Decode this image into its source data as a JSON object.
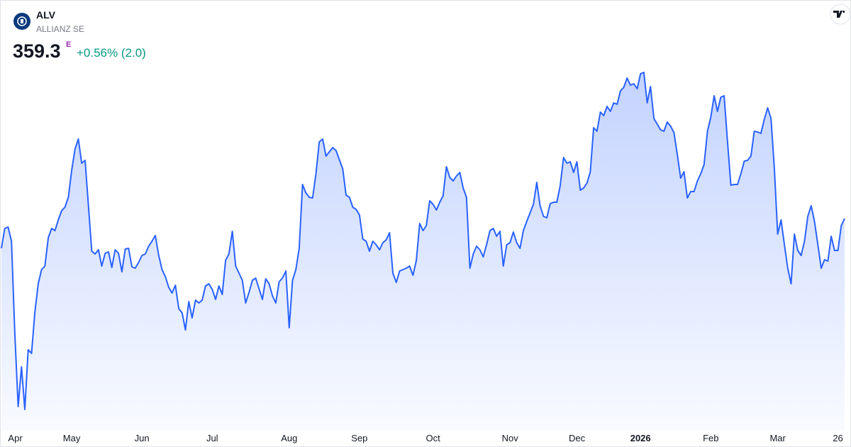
{
  "header": {
    "ticker": "ALV",
    "name": "ALLIANZ SE",
    "price": "359.3",
    "price_flag": "E",
    "change": "+0.56% (2.0)"
  },
  "chart_data": {
    "type": "area",
    "color": "#2962ff",
    "values": [
      355.1,
      357.9,
      358.1,
      356.1,
      343.1,
      332.8,
      338.4,
      332.4,
      340.8,
      340.3,
      346.1,
      350.1,
      352.1,
      352.6,
      356.6,
      357.9,
      357.6,
      359.1,
      360.4,
      360.9,
      362.3,
      366.1,
      369.1,
      370.5,
      367.1,
      367.5,
      361.1,
      354.7,
      354.3,
      354.9,
      352.6,
      354.4,
      354.6,
      352.4,
      354.9,
      354.4,
      351.8,
      355.0,
      355.1,
      352.5,
      352.3,
      353.1,
      354.1,
      354.3,
      355.4,
      356.1,
      356.9,
      354.1,
      352.1,
      351.1,
      349.6,
      348.8,
      349.9,
      346.6,
      346.0,
      343.6,
      347.6,
      345.3,
      347.8,
      347.4,
      347.8,
      349.8,
      350.1,
      349.3,
      347.9,
      349.8,
      348.6,
      353.4,
      354.3,
      357.5,
      352.6,
      351.6,
      350.6,
      347.4,
      348.9,
      350.6,
      350.9,
      349.4,
      347.9,
      350.8,
      350.1,
      348.4,
      347.4,
      350.4,
      350.9,
      351.9,
      343.9,
      350.6,
      352.1,
      355.1,
      364.1,
      362.9,
      362.3,
      362.2,
      365.6,
      370.1,
      370.5,
      368.1,
      368.7,
      369.3,
      368.9,
      367.6,
      366.3,
      362.6,
      362.3,
      360.9,
      360.6,
      359.8,
      356.4,
      356.1,
      354.7,
      356.1,
      355.6,
      354.9,
      355.9,
      356.3,
      357.3,
      351.6,
      350.3,
      351.9,
      352.1,
      352.3,
      352.6,
      351.3,
      353.4,
      358.6,
      357.6,
      358.3,
      361.8,
      361.3,
      360.5,
      361.6,
      362.5,
      366.6,
      365.1,
      364.6,
      365.3,
      365.8,
      363.6,
      362.3,
      352.3,
      354.3,
      355.4,
      354.9,
      353.9,
      355.6,
      357.6,
      357.9,
      356.8,
      357.5,
      352.6,
      355.6,
      355.9,
      357.4,
      355.9,
      355.1,
      357.6,
      358.9,
      360.1,
      361.3,
      364.4,
      361.1,
      359.6,
      359.4,
      361.4,
      361.6,
      361.6,
      363.9,
      367.9,
      367.1,
      367.3,
      365.8,
      367.3,
      363.3,
      363.6,
      364.3,
      365.9,
      372.1,
      371.6,
      374.3,
      373.8,
      375.1,
      374.4,
      375.6,
      375.4,
      377.3,
      377.8,
      379.1,
      378.1,
      378.3,
      377.6,
      379.7,
      379.9,
      375.6,
      377.9,
      373.4,
      372.6,
      371.8,
      371.6,
      372.9,
      372.3,
      371.4,
      368.3,
      365.0,
      365.9,
      362.2,
      363.1,
      363.1,
      364.6,
      365.6,
      366.9,
      371.6,
      373.6,
      376.6,
      374.4,
      376.4,
      376.6,
      370.1,
      364.0,
      364.1,
      364.1,
      365.6,
      367.4,
      367.5,
      368.1,
      371.6,
      371.5,
      371.3,
      373.3,
      374.9,
      373.4,
      366.4,
      357.1,
      359.1,
      355.6,
      352.3,
      350.1,
      357.1,
      354.8,
      354.1,
      356.1,
      359.6,
      361.1,
      358.9,
      355.6,
      352.3,
      353.5,
      353.3,
      356.8,
      354.8,
      354.8,
      358.3,
      359.3
    ],
    "xticks": [
      {
        "value": 2,
        "label": "Apr"
      },
      {
        "value": 21,
        "label": "May"
      },
      {
        "value": 42,
        "label": "Jun"
      },
      {
        "value": 63,
        "label": "Jul"
      },
      {
        "value": 86,
        "label": "Aug"
      },
      {
        "value": 107,
        "label": "Sep"
      },
      {
        "value": 129,
        "label": "Oct"
      },
      {
        "value": 152,
        "label": "Nov"
      },
      {
        "value": 172,
        "label": "Dec"
      },
      {
        "value": 191,
        "label": "2026"
      },
      {
        "value": 212,
        "label": "Feb"
      },
      {
        "value": 232,
        "label": "Mar"
      },
      {
        "value": 250,
        "label": "26"
      }
    ]
  }
}
